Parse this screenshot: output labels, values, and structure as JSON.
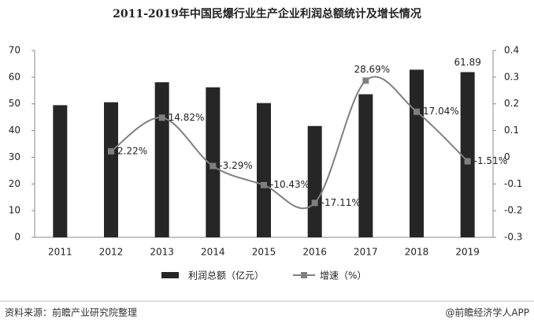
{
  "chart_data": {
    "type": "bar",
    "title": "2011-2019年中国民爆行业生产企业利润总额统计及增长情况",
    "categories": [
      "2011",
      "2012",
      "2013",
      "2014",
      "2015",
      "2016",
      "2017",
      "2018",
      "2019"
    ],
    "series": [
      {
        "name": "利润总额（亿元）",
        "type": "bar",
        "color": "#262626",
        "values": [
          49.5,
          50.6,
          58.1,
          56.2,
          50.3,
          41.7,
          53.6,
          62.8,
          61.89
        ],
        "value_labels": [
          null,
          null,
          null,
          null,
          null,
          null,
          null,
          null,
          "61.89"
        ]
      },
      {
        "name": "增速（%）",
        "type": "line",
        "axis": "y2",
        "color": "#7f7f7f",
        "values": [
          null,
          0.0222,
          0.1482,
          -0.0329,
          -0.1043,
          -0.1711,
          0.2869,
          0.1704,
          -0.0151
        ],
        "value_labels": [
          null,
          "2.22%",
          "14.82%",
          "-3.29%",
          "-10.43%",
          "-17.11%",
          "28.69%",
          "17.04%",
          "-1.51%"
        ]
      }
    ],
    "ylim": [
      0,
      70
    ],
    "yticks": [
      0,
      10,
      20,
      30,
      40,
      50,
      60,
      70
    ],
    "y2lim": [
      -0.3,
      0.4
    ],
    "y2ticks": [
      -0.3,
      -0.2,
      -0.1,
      0,
      0.1,
      0.2,
      0.3,
      0.4
    ],
    "source": "资料来源：前瞻产业研究院整理",
    "credit": "@前瞻经济学人APP"
  }
}
